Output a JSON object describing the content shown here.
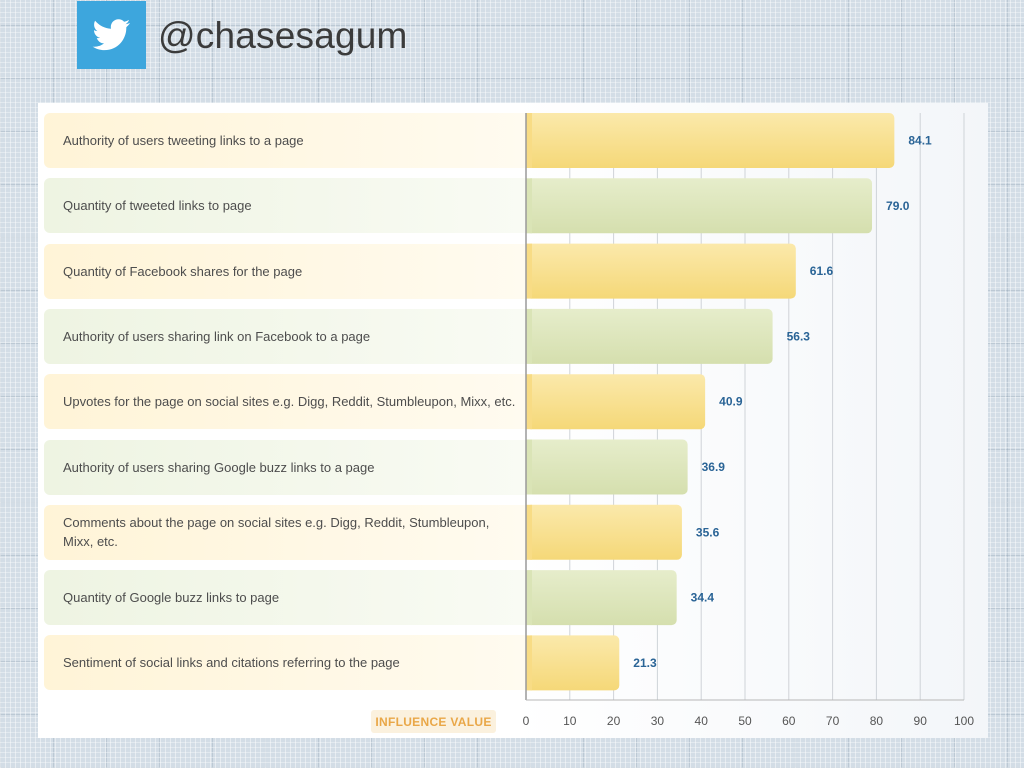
{
  "header": {
    "handle": "@chasesagum",
    "icon": "twitter-bird-icon",
    "icon_bg": "#3da6dd"
  },
  "chart_data": {
    "type": "bar",
    "orientation": "horizontal",
    "categories": [
      "Authority of users tweeting links to a page",
      "Quantity of tweeted links to page",
      "Quantity of Facebook shares for the page",
      "Authority of users sharing link on Facebook to a page",
      "Upvotes for the page on social sites e.g. Digg, Reddit, Stumbleupon, Mixx, etc.",
      "Authority of users sharing Google buzz links to a page",
      "Comments about the page on social sites e.g. Digg, Reddit, Stumbleupon, Mixx, etc.",
      "Quantity of Google buzz links to page",
      "Sentiment of social links and citations referring to the page"
    ],
    "values": [
      84.1,
      79.0,
      61.6,
      56.3,
      40.9,
      36.9,
      35.6,
      34.4,
      21.3
    ],
    "value_labels": [
      "84.1",
      "79.0",
      "61.6",
      "56.3",
      "40.9",
      "36.9",
      "35.6",
      "34.4",
      "21.3"
    ],
    "xlabel": "INFLUENCE VALUE",
    "xlim": [
      0,
      100
    ],
    "xticks": [
      "0",
      "10",
      "20",
      "30",
      "40",
      "50",
      "60",
      "70",
      "80",
      "90",
      "100"
    ],
    "grid": true,
    "colors": {
      "yellow": "#f7df8e",
      "green": "#dde6bb",
      "value_label": "#2a6496",
      "tick": "#555555"
    }
  }
}
